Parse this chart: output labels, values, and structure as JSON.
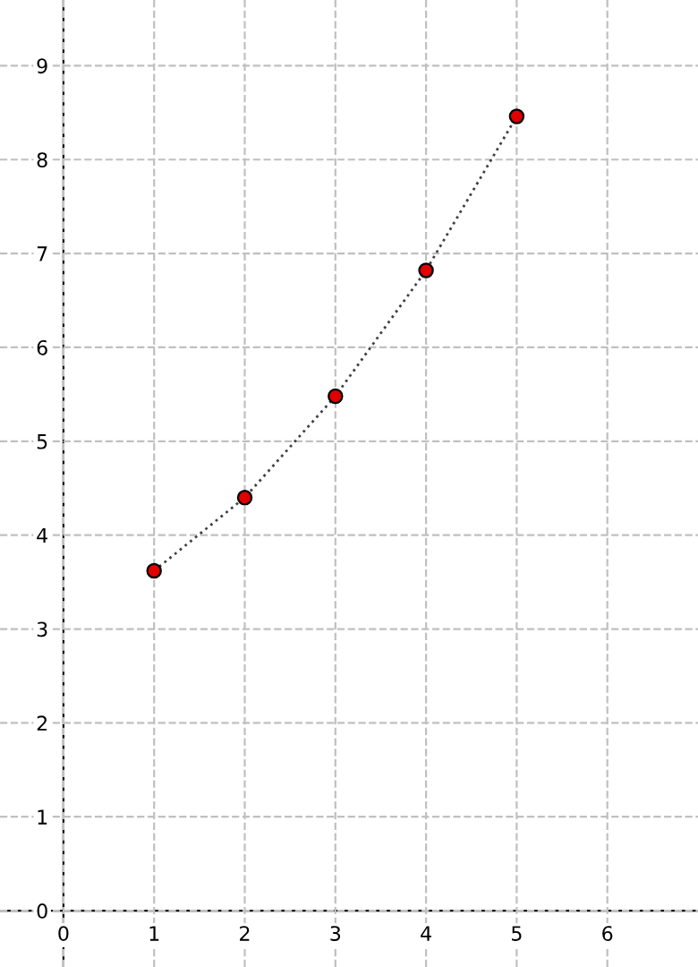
{
  "chart_data": {
    "type": "scatter",
    "x": [
      1,
      2,
      3,
      4,
      5
    ],
    "series": [
      {
        "color": "#e00000",
        "values": [
          3.62,
          4.4,
          5.48,
          6.82,
          8.46
        ],
        "marker": "circle"
      },
      {
        "type": "line",
        "color": "#404040",
        "values": [
          3.62,
          4.4,
          5.48,
          6.82,
          8.46
        ],
        "line_style": "dotted",
        "marker": "none"
      }
    ],
    "xlim": [
      -0.7,
      7
    ],
    "ylim": [
      -0.6,
      9.7
    ],
    "xticks": [
      0,
      1,
      2,
      3,
      4,
      5,
      6
    ],
    "yticks": [
      0,
      1,
      2,
      3,
      4,
      5,
      6,
      7,
      8,
      9
    ],
    "grid": true
  }
}
